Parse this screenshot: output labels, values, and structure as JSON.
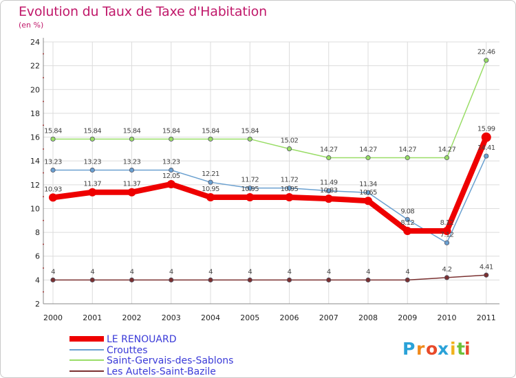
{
  "chart_data": {
    "type": "line",
    "title": "Evolution du Taux de Taxe d'Habitation",
    "subtitle": "(en %)",
    "x": [
      "2000",
      "2001",
      "2002",
      "2003",
      "2004",
      "2005",
      "2006",
      "2007",
      "2008",
      "2009",
      "2010",
      "2011"
    ],
    "ylim": [
      2,
      24
    ],
    "yticks": [
      2,
      4,
      6,
      8,
      10,
      12,
      14,
      16,
      18,
      20,
      22,
      24
    ],
    "grid": true,
    "legend_position": "bottom-left",
    "series": [
      {
        "name": "LE RENOUARD",
        "color": "#ee0000",
        "values": [
          10.93,
          11.37,
          11.37,
          12.05,
          10.95,
          10.95,
          10.95,
          10.83,
          10.65,
          8.12,
          8.12,
          15.99
        ],
        "labels": [
          "10.93",
          "11.37",
          "11.37",
          "12.05",
          "10.95",
          "10.95",
          "10.95",
          "10.83",
          "10.65",
          "8.12",
          "8.12",
          "15.99"
        ]
      },
      {
        "name": "Crouttes",
        "color": "#6aa0d0",
        "values": [
          13.23,
          13.23,
          13.23,
          13.23,
          12.21,
          11.72,
          11.72,
          11.49,
          11.34,
          9.08,
          7.12,
          14.41
        ],
        "labels": [
          "13.23",
          "13.23",
          "13.23",
          "13.23",
          "12.21",
          "11.72",
          "11.72",
          "11.49",
          "11.34",
          "9.08",
          "7.12",
          "14.41"
        ]
      },
      {
        "name": "Saint-Gervais-des-Sablons",
        "color": "#99dd66",
        "values": [
          15.84,
          15.84,
          15.84,
          15.84,
          15.84,
          15.84,
          15.02,
          14.27,
          14.27,
          14.27,
          14.27,
          22.46
        ],
        "labels": [
          "15.84",
          "15.84",
          "15.84",
          "15.84",
          "15.84",
          "15.84",
          "15.02",
          "14.27",
          "14.27",
          "14.27",
          "14.27",
          "22.46"
        ]
      },
      {
        "name": "Les Autels-Saint-Bazile",
        "color": "#7a3030",
        "values": [
          4,
          4,
          4,
          4,
          4,
          4,
          4,
          4,
          4,
          4,
          4.2,
          4.41
        ],
        "labels": [
          "4",
          "4",
          "4",
          "4",
          "4",
          "4",
          "4",
          "4",
          "4",
          "4",
          "4.2",
          "4.41"
        ]
      }
    ]
  },
  "logo": {
    "letters": [
      {
        "ch": "P",
        "color": "#2aa2d8"
      },
      {
        "ch": "r",
        "color": "#f08a1c"
      },
      {
        "ch": "o",
        "color": "#e84a2a"
      },
      {
        "ch": "x",
        "color": "#2aa2d8"
      },
      {
        "ch": "i",
        "color": "#f0b21c"
      },
      {
        "ch": "t",
        "color": "#6cc13a"
      },
      {
        "ch": "i",
        "color": "#e84a2a"
      }
    ]
  }
}
